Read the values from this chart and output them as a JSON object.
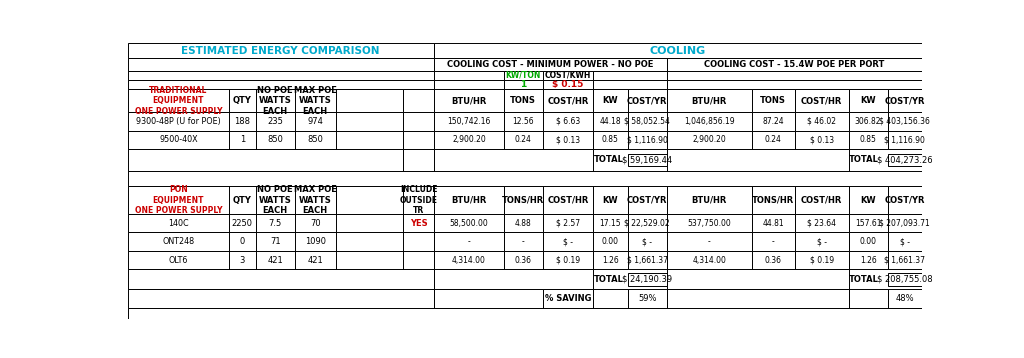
{
  "title_left": "ESTIMATED ENERGY COMPARISON",
  "title_right": "COOLING",
  "subtitle_left": "COOLING COST - MINIMUM POWER - NO POE",
  "subtitle_right": "COOLING COST - 15.4W POE PER PORT",
  "kw_ton_label": "KW/TON",
  "kw_ton_value": "1",
  "cost_kwh_label": "COST/KWH",
  "cost_kwh_value": "$ 0.15",
  "trad_nopoe_rows": [
    [
      "150,742.16",
      "12.56",
      "$ 6.63",
      "44.18",
      "$ 58,052.54"
    ],
    [
      "2,900.20",
      "0.24",
      "$ 0.13",
      "0.85",
      "$ 1,116.90"
    ]
  ],
  "trad_nopoe_total": "$ 59,169.44",
  "trad_poe_rows": [
    [
      "1,046,856.19",
      "87.24",
      "$ 46.02",
      "306.82",
      "$ 403,156.36"
    ],
    [
      "2,900.20",
      "0.24",
      "$ 0.13",
      "0.85",
      "$ 1,116.90"
    ]
  ],
  "trad_poe_total": "$ 404,273.26",
  "pon_nopoe_rows": [
    [
      "58,500.00",
      "4.88",
      "$ 2.57",
      "17.15",
      "$ 22,529.02"
    ],
    [
      "-",
      "-",
      "$ -",
      "0.00",
      "$ -"
    ],
    [
      "4,314.00",
      "0.36",
      "$ 0.19",
      "1.26",
      "$ 1,661.37"
    ]
  ],
  "pon_nopoe_total": "$ 24,190.39",
  "pon_nopoe_saving": "59%",
  "pon_poe_rows": [
    [
      "537,750.00",
      "44.81",
      "$ 23.64",
      "157.61",
      "$ 207,093.71"
    ],
    [
      "-",
      "-",
      "$ -",
      "0.00",
      "$ -"
    ],
    [
      "4,314.00",
      "0.36",
      "$ 0.19",
      "1.26",
      "$ 1,661.37"
    ]
  ],
  "pon_poe_total": "$ 208,755.08",
  "pon_poe_saving": "48%",
  "color_red": "#CC0000",
  "color_cyan": "#00AACC",
  "color_green": "#00AA00",
  "color_black": "#000000",
  "color_white": "#FFFFFF"
}
